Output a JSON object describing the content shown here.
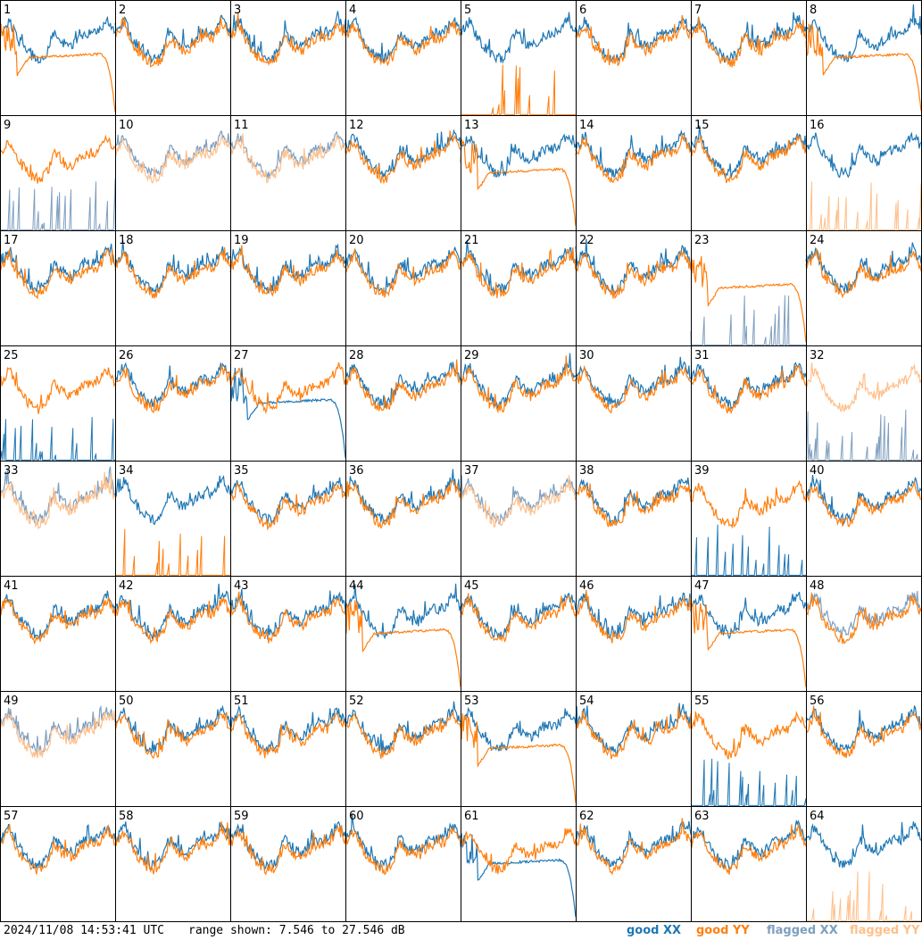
{
  "footer": {
    "timestamp": "2024/11/08 14:53:41 UTC",
    "range": "range shown: 7.546 to 27.546 dB"
  },
  "legend": [
    {
      "label": "good XX",
      "color": "#1f77b4"
    },
    {
      "label": "good YY",
      "color": "#ff7f0e"
    },
    {
      "label": "flagged XX",
      "color": "#7f9fbf"
    },
    {
      "label": "flagged YY",
      "color": "#ffbf8a"
    }
  ],
  "chart_data": {
    "type": "line",
    "range_db": [
      7.546,
      27.546
    ],
    "grid": {
      "rows": 8,
      "cols": 8
    },
    "panels": [
      {
        "id": 1,
        "xx": "good",
        "yy": "good",
        "shape": {
          "xx": "normal",
          "yy": "roll"
        }
      },
      {
        "id": 2,
        "xx": "good",
        "yy": "good",
        "shape": {
          "xx": "normal",
          "yy": "normal"
        }
      },
      {
        "id": 3,
        "xx": "good",
        "yy": "good",
        "shape": {
          "xx": "normal",
          "yy": "normal"
        }
      },
      {
        "id": 4,
        "xx": "good",
        "yy": "good",
        "shape": {
          "xx": "normal",
          "yy": "normal"
        }
      },
      {
        "id": 5,
        "xx": "good",
        "yy": "good",
        "shape": {
          "xx": "normal",
          "yy": "spikes"
        }
      },
      {
        "id": 6,
        "xx": "good",
        "yy": "good",
        "shape": {
          "xx": "normal",
          "yy": "normal"
        }
      },
      {
        "id": 7,
        "xx": "good",
        "yy": "good",
        "shape": {
          "xx": "normal",
          "yy": "normal"
        }
      },
      {
        "id": 8,
        "xx": "good",
        "yy": "good",
        "shape": {
          "xx": "normal",
          "yy": "roll"
        }
      },
      {
        "id": 9,
        "xx": "flagged",
        "yy": "good",
        "shape": {
          "xx": "spikes",
          "yy": "normal"
        }
      },
      {
        "id": 10,
        "xx": "flagged",
        "yy": "flagged",
        "shape": {
          "xx": "normal",
          "yy": "normal"
        }
      },
      {
        "id": 11,
        "xx": "flagged",
        "yy": "flagged",
        "shape": {
          "xx": "normal",
          "yy": "normal"
        }
      },
      {
        "id": 12,
        "xx": "good",
        "yy": "good",
        "shape": {
          "xx": "normal",
          "yy": "normal"
        }
      },
      {
        "id": 13,
        "xx": "good",
        "yy": "good",
        "shape": {
          "xx": "normal",
          "yy": "roll"
        }
      },
      {
        "id": 14,
        "xx": "good",
        "yy": "good",
        "shape": {
          "xx": "normal",
          "yy": "normal"
        }
      },
      {
        "id": 15,
        "xx": "good",
        "yy": "good",
        "shape": {
          "xx": "normal",
          "yy": "normal"
        }
      },
      {
        "id": 16,
        "xx": "good",
        "yy": "flagged",
        "shape": {
          "xx": "normal",
          "yy": "spikes"
        }
      },
      {
        "id": 17,
        "xx": "good",
        "yy": "good",
        "shape": {
          "xx": "normal",
          "yy": "normal"
        }
      },
      {
        "id": 18,
        "xx": "good",
        "yy": "good",
        "shape": {
          "xx": "normal",
          "yy": "normal"
        }
      },
      {
        "id": 19,
        "xx": "good",
        "yy": "good",
        "shape": {
          "xx": "normal",
          "yy": "normal"
        }
      },
      {
        "id": 20,
        "xx": "good",
        "yy": "good",
        "shape": {
          "xx": "normal",
          "yy": "normal"
        }
      },
      {
        "id": 21,
        "xx": "good",
        "yy": "good",
        "shape": {
          "xx": "normal",
          "yy": "normal"
        }
      },
      {
        "id": 22,
        "xx": "good",
        "yy": "good",
        "shape": {
          "xx": "normal",
          "yy": "normal"
        }
      },
      {
        "id": 23,
        "xx": "flagged",
        "yy": "good",
        "shape": {
          "xx": "spikes",
          "yy": "roll"
        }
      },
      {
        "id": 24,
        "xx": "good",
        "yy": "good",
        "shape": {
          "xx": "normal",
          "yy": "normal"
        }
      },
      {
        "id": 25,
        "xx": "good",
        "yy": "good",
        "shape": {
          "xx": "spikes",
          "yy": "normal"
        }
      },
      {
        "id": 26,
        "xx": "good",
        "yy": "good",
        "shape": {
          "xx": "normal",
          "yy": "normal"
        }
      },
      {
        "id": 27,
        "xx": "good",
        "yy": "good",
        "shape": {
          "xx": "roll",
          "yy": "normal"
        }
      },
      {
        "id": 28,
        "xx": "good",
        "yy": "good",
        "shape": {
          "xx": "normal",
          "yy": "normal"
        }
      },
      {
        "id": 29,
        "xx": "good",
        "yy": "good",
        "shape": {
          "xx": "normal",
          "yy": "normal"
        }
      },
      {
        "id": 30,
        "xx": "good",
        "yy": "good",
        "shape": {
          "xx": "normal",
          "yy": "normal"
        }
      },
      {
        "id": 31,
        "xx": "good",
        "yy": "good",
        "shape": {
          "xx": "normal",
          "yy": "normal"
        }
      },
      {
        "id": 32,
        "xx": "flagged",
        "yy": "flagged",
        "shape": {
          "xx": "spikes",
          "yy": "normal"
        }
      },
      {
        "id": 33,
        "xx": "flagged",
        "yy": "flagged",
        "shape": {
          "xx": "normal",
          "yy": "normal"
        }
      },
      {
        "id": 34,
        "xx": "good",
        "yy": "good",
        "shape": {
          "xx": "normal",
          "yy": "spikes"
        }
      },
      {
        "id": 35,
        "xx": "good",
        "yy": "good",
        "shape": {
          "xx": "normal",
          "yy": "normal"
        }
      },
      {
        "id": 36,
        "xx": "good",
        "yy": "good",
        "shape": {
          "xx": "normal",
          "yy": "normal"
        }
      },
      {
        "id": 37,
        "xx": "flagged",
        "yy": "flagged",
        "shape": {
          "xx": "normal",
          "yy": "normal"
        }
      },
      {
        "id": 38,
        "xx": "good",
        "yy": "good",
        "shape": {
          "xx": "normal",
          "yy": "normal"
        }
      },
      {
        "id": 39,
        "xx": "good",
        "yy": "good",
        "shape": {
          "xx": "spikes",
          "yy": "normal"
        }
      },
      {
        "id": 40,
        "xx": "good",
        "yy": "good",
        "shape": {
          "xx": "normal",
          "yy": "normal"
        }
      },
      {
        "id": 41,
        "xx": "good",
        "yy": "good",
        "shape": {
          "xx": "normal",
          "yy": "normal"
        }
      },
      {
        "id": 42,
        "xx": "good",
        "yy": "good",
        "shape": {
          "xx": "normal",
          "yy": "normal"
        }
      },
      {
        "id": 43,
        "xx": "good",
        "yy": "good",
        "shape": {
          "xx": "normal",
          "yy": "normal"
        }
      },
      {
        "id": 44,
        "xx": "good",
        "yy": "good",
        "shape": {
          "xx": "normal",
          "yy": "roll"
        }
      },
      {
        "id": 45,
        "xx": "good",
        "yy": "good",
        "shape": {
          "xx": "normal",
          "yy": "normal"
        }
      },
      {
        "id": 46,
        "xx": "good",
        "yy": "good",
        "shape": {
          "xx": "normal",
          "yy": "normal"
        }
      },
      {
        "id": 47,
        "xx": "good",
        "yy": "good",
        "shape": {
          "xx": "normal",
          "yy": "roll"
        }
      },
      {
        "id": 48,
        "xx": "flagged",
        "yy": "good",
        "shape": {
          "xx": "normal",
          "yy": "normal"
        }
      },
      {
        "id": 49,
        "xx": "flagged",
        "yy": "flagged",
        "shape": {
          "xx": "normal",
          "yy": "normal"
        }
      },
      {
        "id": 50,
        "xx": "good",
        "yy": "good",
        "shape": {
          "xx": "normal",
          "yy": "normal"
        }
      },
      {
        "id": 51,
        "xx": "good",
        "yy": "good",
        "shape": {
          "xx": "normal",
          "yy": "normal"
        }
      },
      {
        "id": 52,
        "xx": "good",
        "yy": "good",
        "shape": {
          "xx": "normal",
          "yy": "normal"
        }
      },
      {
        "id": 53,
        "xx": "good",
        "yy": "good",
        "shape": {
          "xx": "normal",
          "yy": "roll"
        }
      },
      {
        "id": 54,
        "xx": "good",
        "yy": "good",
        "shape": {
          "xx": "normal",
          "yy": "normal"
        }
      },
      {
        "id": 55,
        "xx": "good",
        "yy": "good",
        "shape": {
          "xx": "spikes",
          "yy": "normal"
        }
      },
      {
        "id": 56,
        "xx": "good",
        "yy": "good",
        "shape": {
          "xx": "normal",
          "yy": "normal"
        }
      },
      {
        "id": 57,
        "xx": "good",
        "yy": "good",
        "shape": {
          "xx": "normal",
          "yy": "normal"
        }
      },
      {
        "id": 58,
        "xx": "good",
        "yy": "good",
        "shape": {
          "xx": "normal",
          "yy": "normal"
        }
      },
      {
        "id": 59,
        "xx": "good",
        "yy": "good",
        "shape": {
          "xx": "normal",
          "yy": "normal"
        }
      },
      {
        "id": 60,
        "xx": "good",
        "yy": "good",
        "shape": {
          "xx": "normal",
          "yy": "normal"
        }
      },
      {
        "id": 61,
        "xx": "good",
        "yy": "good",
        "shape": {
          "xx": "roll",
          "yy": "normal"
        }
      },
      {
        "id": 62,
        "xx": "good",
        "yy": "good",
        "shape": {
          "xx": "normal",
          "yy": "normal"
        }
      },
      {
        "id": 63,
        "xx": "good",
        "yy": "good",
        "shape": {
          "xx": "normal",
          "yy": "normal"
        }
      },
      {
        "id": 64,
        "xx": "good",
        "yy": "flagged",
        "shape": {
          "xx": "normal",
          "yy": "spikes"
        }
      }
    ]
  }
}
